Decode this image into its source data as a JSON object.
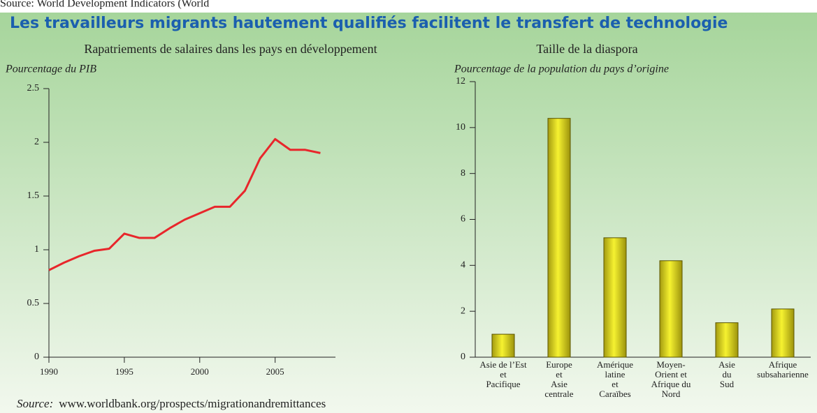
{
  "header_text": "Source: World Development Indicators (World",
  "title": "Les travailleurs migrants hautement qualifiés facilitent le transfert de technologie",
  "source_label": "Source:",
  "source_url": "www.worldbank.org/prospects/migrationandremittances",
  "chart_data": [
    {
      "type": "line",
      "title": "Rapatriements de salaires dans les pays en développement",
      "y_label": "Pourcentage du PIB",
      "x": [
        1990,
        1991,
        1992,
        1993,
        1994,
        1995,
        1996,
        1997,
        1998,
        1999,
        2000,
        2001,
        2002,
        2003,
        2004,
        2005,
        2006,
        2007,
        2008
      ],
      "series": [
        {
          "name": "Rapatriements",
          "color": "#e8262b",
          "values": [
            0.81,
            0.88,
            0.94,
            0.99,
            1.01,
            1.15,
            1.11,
            1.11,
            1.2,
            1.28,
            1.34,
            1.4,
            1.4,
            1.55,
            1.85,
            2.03,
            1.93,
            1.93,
            1.9
          ]
        }
      ],
      "xlim": [
        1990,
        2009
      ],
      "xticks": [
        1990,
        1995,
        2000,
        2005
      ],
      "ylim": [
        0,
        2.5
      ],
      "yticks": [
        0,
        0.5,
        1,
        1.5,
        2,
        2.5
      ]
    },
    {
      "type": "bar",
      "title": "Taille de la diaspora",
      "y_label": "Pourcentage de la population du pays d’origine",
      "categories": [
        "Asie de l’Est\net\nPacifique",
        "Europe\net\nAsie\ncentrale",
        "Amérique\nlatine\net\nCaraïbes",
        "Moyen-\nOrient et\nAfrique du\nNord",
        "Asie\ndu\nSud",
        "Afrique\nsubsaharienne"
      ],
      "values": [
        1.0,
        10.4,
        5.2,
        4.2,
        1.5,
        2.1
      ],
      "color": "#e6e020",
      "ylim": [
        0,
        12
      ],
      "yticks": [
        0,
        2,
        4,
        6,
        8,
        10,
        12
      ]
    }
  ]
}
